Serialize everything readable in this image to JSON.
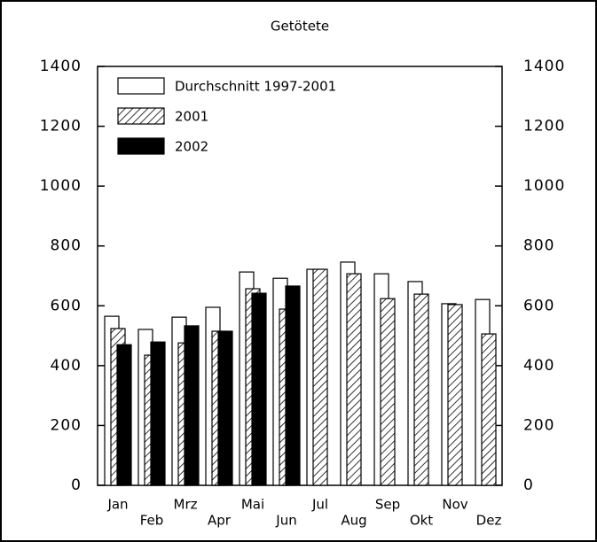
{
  "chart_data": {
    "type": "bar",
    "title": "Getötete",
    "categories": [
      "Jan",
      "Feb",
      "Mrz",
      "Apr",
      "Mai",
      "Jun",
      "Jul",
      "Aug",
      "Sep",
      "Okt",
      "Nov",
      "Dez"
    ],
    "series": [
      {
        "name": "Durchschnitt 1997-2001",
        "color": "#ffffff",
        "values": [
          565,
          521,
          562,
          595,
          713,
          692,
          722,
          746,
          707,
          681,
          607,
          621
        ]
      },
      {
        "name": "2001",
        "color": "#ffffff",
        "hatch": true,
        "values": [
          524,
          435,
          476,
          515,
          657,
          589,
          722,
          707,
          624,
          639,
          604,
          506
        ]
      },
      {
        "name": "2002",
        "color": "#000000",
        "values": [
          470,
          479,
          533,
          515,
          642,
          666,
          null,
          null,
          null,
          null,
          null,
          null
        ]
      }
    ],
    "ylim": [
      0,
      1400
    ],
    "yticks": [
      0,
      200,
      400,
      600,
      800,
      1000,
      1200,
      1400
    ],
    "y2lim": [
      0,
      1400
    ],
    "y2ticks": [
      0,
      200,
      400,
      600,
      800,
      1000,
      1200,
      1400
    ],
    "legend": "top-left"
  }
}
